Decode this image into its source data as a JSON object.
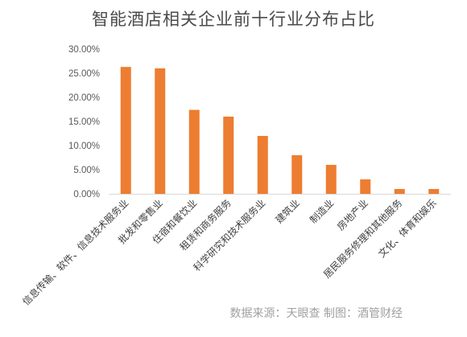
{
  "chart_data": {
    "type": "bar",
    "title": "智能酒店相关企业前十行业分布占比",
    "categories": [
      "信息传输、软件、信息技术服务业",
      "批发和零售业",
      "住宿和餐饮业",
      "租赁和商务服务",
      "科学研究和技术服务业",
      "建筑业",
      "制造业",
      "房地产业",
      "居民服务修理和其他服务",
      "文化、体育和娱乐"
    ],
    "values": [
      26.3,
      26.0,
      17.4,
      16.0,
      12.0,
      8.0,
      6.0,
      3.0,
      1.0,
      1.0
    ],
    "ylim": [
      0,
      30
    ],
    "yticks": [
      "0.00%",
      "5.00%",
      "10.00%",
      "15.00%",
      "20.00%",
      "25.00%",
      "30.00%"
    ],
    "xlabel": "",
    "ylabel": "",
    "grid": false,
    "legend": "none",
    "bar_color": "#ed7d31",
    "axis_color": "#d9d9d9"
  },
  "source_note": "数据来源：天眼查   制图：酒管财经"
}
